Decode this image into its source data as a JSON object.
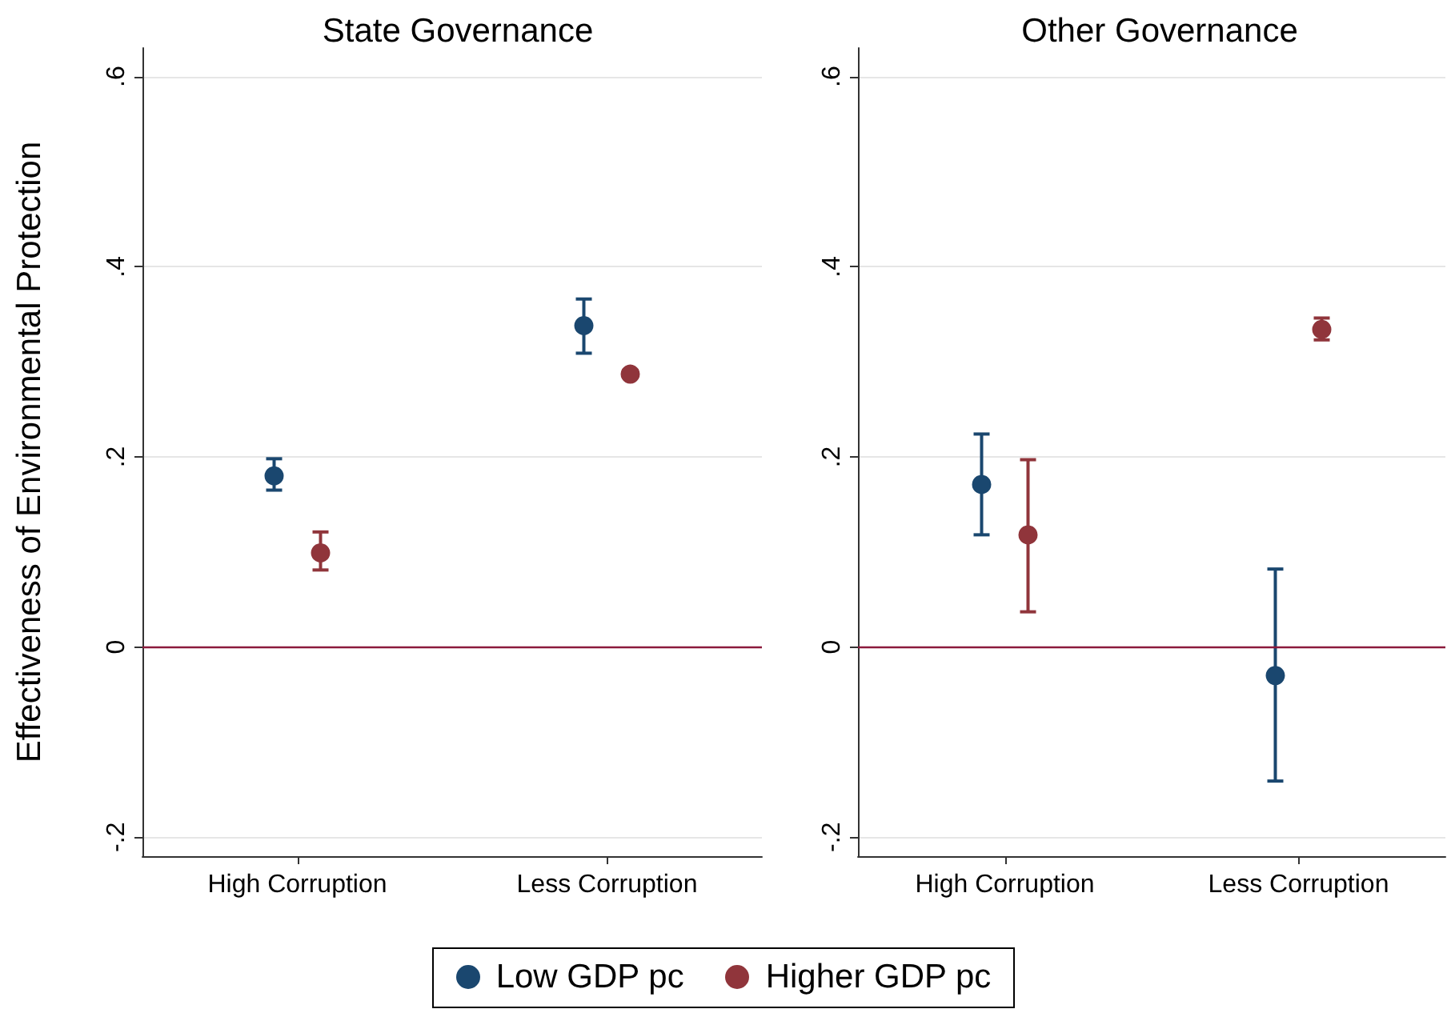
{
  "chart_data": [
    {
      "type": "scatter",
      "title": "State Governance",
      "ylabel": "Effectiveness of Environmental Protection",
      "categories": [
        "High Corruption",
        "Less Corruption"
      ],
      "series": [
        {
          "name": "Low GDP pc",
          "color": "#1a476f",
          "values": [
            0.18,
            0.338
          ],
          "errors": [
            [
              0.165,
              0.198
            ],
            [
              0.309,
              0.366
            ]
          ]
        },
        {
          "name": "Higher GDP pc",
          "color": "#90353b",
          "values": [
            0.099,
            0.287
          ],
          "errors": [
            [
              0.081,
              0.121
            ],
            [
              0.284,
              0.291
            ]
          ]
        }
      ],
      "ylim": [
        -0.22,
        0.63
      ],
      "yticks": [
        {
          "value": -0.2,
          "label": "-.2"
        },
        {
          "value": 0,
          "label": "0"
        },
        {
          "value": 0.2,
          "label": ".2"
        },
        {
          "value": 0.4,
          "label": ".4"
        },
        {
          "value": 0.6,
          "label": ".6"
        }
      ],
      "ref_lines": [
        {
          "axis": "y",
          "value": 0,
          "color": "#8b1a3c"
        }
      ],
      "grid": "y",
      "legend": "bottom",
      "marker": "circle"
    },
    {
      "type": "scatter",
      "title": "Other Governance",
      "categories": [
        "High Corruption",
        "Less Corruption"
      ],
      "series": [
        {
          "color": "#1a476f",
          "values": [
            0.171,
            -0.03
          ],
          "errors": [
            [
              0.118,
              0.224
            ],
            [
              -0.141,
              0.082
            ]
          ]
        },
        {
          "color": "#90353b",
          "values": [
            0.118,
            0.334
          ],
          "errors": [
            [
              0.037,
              0.197
            ],
            [
              0.323,
              0.346
            ]
          ]
        }
      ],
      "ylim": [
        -0.22,
        0.63
      ],
      "yticks": [
        {
          "value": -0.2,
          "label": "-.2"
        },
        {
          "value": 0,
          "label": "0"
        },
        {
          "value": 0.2,
          "label": ".2"
        },
        {
          "value": 0.4,
          "label": ".4"
        },
        {
          "value": 0.6,
          "label": ".6"
        }
      ],
      "ref_lines": [
        {
          "axis": "y",
          "value": 0,
          "color": "#8b1a3c"
        }
      ],
      "grid": "y",
      "marker": "circle"
    }
  ]
}
